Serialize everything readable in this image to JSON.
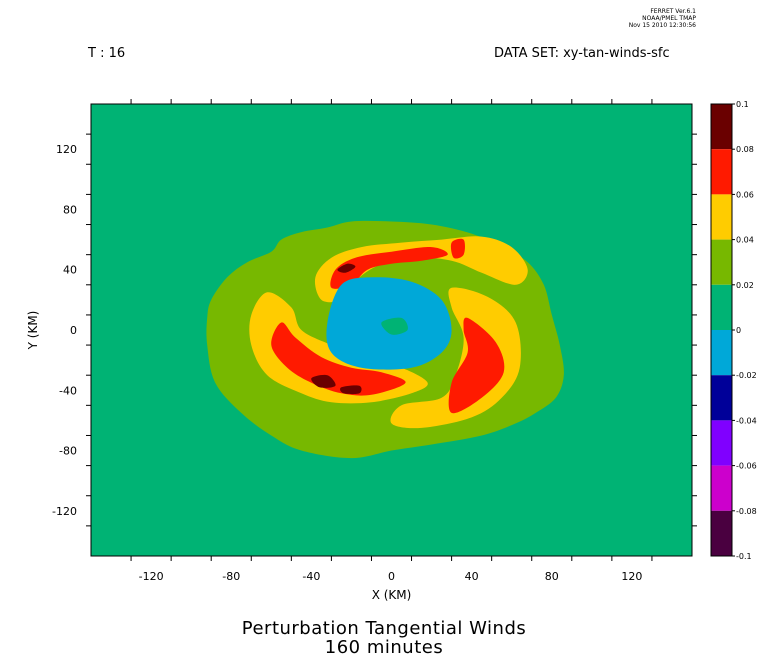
{
  "header": {
    "time_label": "T : 16",
    "dataset_label": "DATA SET: xy-tan-winds-sfc",
    "stamp_lines": [
      "FERRET  Ver.6.1",
      "NOAA/PMEL TMAP",
      "Nov 15 2010 12:30:56"
    ]
  },
  "title_lines": [
    "Perturbation Tangential Winds",
    "160 minutes"
  ],
  "chart_data": {
    "type": "contour_filled",
    "xlabel": "X (KM)",
    "ylabel": "Y (KM)",
    "xlim": [
      -150,
      150
    ],
    "ylim": [
      -150,
      150
    ],
    "x_ticks": [
      -120,
      -80,
      -40,
      0,
      40,
      80,
      120
    ],
    "y_ticks": [
      -120,
      -80,
      -40,
      0,
      40,
      80,
      120
    ],
    "x_minor_step": 20,
    "y_minor_step": 20,
    "colorbar": {
      "levels": [
        0.1,
        0.08,
        0.06,
        0.04,
        0.02,
        0,
        -0.02,
        -0.04,
        -0.06,
        -0.08,
        -0.1
      ],
      "level_labels": [
        "0.1",
        "0.08",
        "0.06",
        "0.04",
        "0.02",
        "0",
        "-0.02",
        "-0.04",
        "-0.06",
        "-0.08",
        "-0.1"
      ],
      "colors": [
        "#6a0000",
        "#ff1a00",
        "#ffcc00",
        "#77b800",
        "#00b374",
        "#00a8d8",
        "#000099",
        "#8000ff",
        "#cc00cc",
        "#4a0040"
      ]
    },
    "background_range": [
      0,
      0.02
    ],
    "features": [
      {
        "name": "outer-ring",
        "range": [
          0.02,
          0.04
        ],
        "color": "#77b800",
        "outline_km": [
          [
            -90,
            20
          ],
          [
            -82,
            35
          ],
          [
            -72,
            45
          ],
          [
            -60,
            52
          ],
          [
            -55,
            60
          ],
          [
            -45,
            65
          ],
          [
            -32,
            68
          ],
          [
            -20,
            72
          ],
          [
            0,
            72
          ],
          [
            20,
            70
          ],
          [
            40,
            64
          ],
          [
            55,
            55
          ],
          [
            68,
            45
          ],
          [
            76,
            30
          ],
          [
            80,
            10
          ],
          [
            84,
            -10
          ],
          [
            86,
            -30
          ],
          [
            82,
            -45
          ],
          [
            72,
            -55
          ],
          [
            62,
            -62
          ],
          [
            45,
            -70
          ],
          [
            20,
            -76
          ],
          [
            0,
            -80
          ],
          [
            -20,
            -85
          ],
          [
            -45,
            -80
          ],
          [
            -60,
            -70
          ],
          [
            -75,
            -55
          ],
          [
            -88,
            -35
          ],
          [
            -92,
            -10
          ],
          [
            -92,
            8
          ]
        ]
      },
      {
        "name": "upper-arm-yellow",
        "range": [
          0.04,
          0.06
        ],
        "color": "#ffcc00",
        "outline_km": [
          [
            -35,
            20
          ],
          [
            -38,
            35
          ],
          [
            -30,
            48
          ],
          [
            -15,
            55
          ],
          [
            5,
            58
          ],
          [
            25,
            60
          ],
          [
            45,
            62
          ],
          [
            60,
            55
          ],
          [
            68,
            40
          ],
          [
            62,
            30
          ],
          [
            45,
            38
          ],
          [
            30,
            46
          ],
          [
            10,
            48
          ],
          [
            -8,
            42
          ],
          [
            -20,
            30
          ],
          [
            -25,
            20
          ]
        ]
      },
      {
        "name": "upper-arm-red",
        "range": [
          0.06,
          0.08
        ],
        "color": "#ff1a00",
        "outline_km": [
          [
            -30,
            28
          ],
          [
            -28,
            40
          ],
          [
            -18,
            48
          ],
          [
            0,
            52
          ],
          [
            20,
            55
          ],
          [
            28,
            50
          ],
          [
            15,
            46
          ],
          [
            0,
            44
          ],
          [
            -12,
            40
          ],
          [
            -20,
            30
          ]
        ]
      },
      {
        "name": "upper-red-blob",
        "range": [
          0.06,
          0.08
        ],
        "color": "#ff1a00",
        "outline_km": [
          [
            30,
            58
          ],
          [
            36,
            60
          ],
          [
            36,
            50
          ],
          [
            31,
            48
          ]
        ]
      },
      {
        "name": "upper-core",
        "range": [
          0.08,
          0.1
        ],
        "color": "#6a0000",
        "outline_km": [
          [
            -27,
            40
          ],
          [
            -22,
            44
          ],
          [
            -18,
            42
          ],
          [
            -23,
            38
          ]
        ]
      },
      {
        "name": "left-arm-yellow",
        "range": [
          0.04,
          0.06
        ],
        "color": "#ffcc00",
        "outline_km": [
          [
            -62,
            25
          ],
          [
            -70,
            10
          ],
          [
            -70,
            -10
          ],
          [
            -62,
            -30
          ],
          [
            -45,
            -42
          ],
          [
            -30,
            -48
          ],
          [
            -10,
            -48
          ],
          [
            10,
            -42
          ],
          [
            18,
            -35
          ],
          [
            5,
            -25
          ],
          [
            -15,
            -18
          ],
          [
            -30,
            -10
          ],
          [
            -45,
            0
          ],
          [
            -50,
            15
          ]
        ]
      },
      {
        "name": "left-arm-red",
        "range": [
          0.06,
          0.08
        ],
        "color": "#ff1a00",
        "outline_km": [
          [
            -55,
            5
          ],
          [
            -60,
            -10
          ],
          [
            -52,
            -25
          ],
          [
            -40,
            -35
          ],
          [
            -25,
            -42
          ],
          [
            -10,
            -43
          ],
          [
            7,
            -35
          ],
          [
            -5,
            -28
          ],
          [
            -20,
            -25
          ],
          [
            -35,
            -18
          ],
          [
            -48,
            -5
          ]
        ]
      },
      {
        "name": "left-core-a",
        "range": [
          0.08,
          0.1
        ],
        "color": "#6a0000",
        "outline_km": [
          [
            -40,
            -32
          ],
          [
            -32,
            -30
          ],
          [
            -28,
            -37
          ],
          [
            -36,
            -38
          ]
        ]
      },
      {
        "name": "left-core-b",
        "range": [
          0.08,
          0.1
        ],
        "color": "#6a0000",
        "outline_km": [
          [
            -25,
            -38
          ],
          [
            -16,
            -37
          ],
          [
            -16,
            -42
          ],
          [
            -24,
            -42
          ]
        ]
      },
      {
        "name": "right-arm-yellow",
        "range": [
          0.04,
          0.06
        ],
        "color": "#ffcc00",
        "outline_km": [
          [
            30,
            28
          ],
          [
            48,
            22
          ],
          [
            62,
            5
          ],
          [
            64,
            -25
          ],
          [
            55,
            -45
          ],
          [
            40,
            -58
          ],
          [
            15,
            -65
          ],
          [
            0,
            -62
          ],
          [
            5,
            -50
          ],
          [
            25,
            -45
          ],
          [
            32,
            -30
          ],
          [
            36,
            -5
          ],
          [
            30,
            15
          ]
        ]
      },
      {
        "name": "right-arm-red",
        "range": [
          0.06,
          0.08
        ],
        "color": "#ff1a00",
        "outline_km": [
          [
            38,
            8
          ],
          [
            52,
            -8
          ],
          [
            56,
            -28
          ],
          [
            45,
            -45
          ],
          [
            30,
            -55
          ],
          [
            30,
            -35
          ],
          [
            38,
            -15
          ],
          [
            36,
            0
          ]
        ]
      },
      {
        "name": "center-negative",
        "range": [
          -0.02,
          0
        ],
        "color": "#00a8d8",
        "outline_km": [
          [
            -25,
            30
          ],
          [
            -10,
            35
          ],
          [
            10,
            32
          ],
          [
            25,
            20
          ],
          [
            30,
            0
          ],
          [
            25,
            -15
          ],
          [
            10,
            -25
          ],
          [
            -15,
            -25
          ],
          [
            -30,
            -15
          ],
          [
            -32,
            5
          ]
        ]
      },
      {
        "name": "center-inner-pocket",
        "range": [
          0,
          0.02
        ],
        "color": "#00b374",
        "outline_km": [
          [
            -5,
            5
          ],
          [
            5,
            8
          ],
          [
            8,
            0
          ],
          [
            0,
            -3
          ]
        ]
      }
    ]
  }
}
